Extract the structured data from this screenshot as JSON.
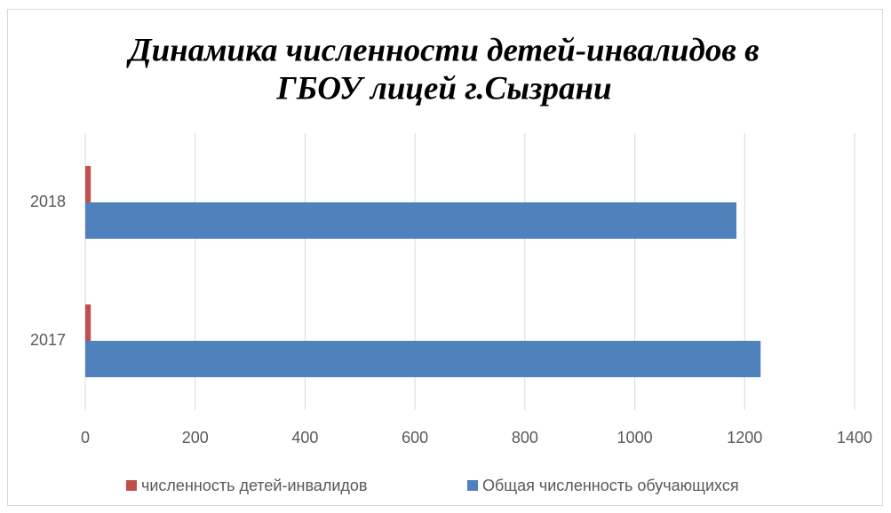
{
  "chart_data": {
    "type": "hbar",
    "title": [
      "Динамика численности детей-инвалидов в",
      "ГБОУ лицей г.Сызрани"
    ],
    "categories": [
      "2017",
      "2018"
    ],
    "series": [
      {
        "name": "численность детей-инвалидов",
        "color": "#c0504d",
        "values": [
          10,
          10
        ]
      },
      {
        "name": "Общая численность обучающихся",
        "color": "#4f81bd",
        "values": [
          1229,
          1185
        ]
      }
    ],
    "xlim": [
      0,
      1400
    ],
    "xticks": [
      0,
      200,
      400,
      600,
      800,
      1000,
      1200,
      1400
    ],
    "grid": true,
    "legend": "bottom"
  }
}
